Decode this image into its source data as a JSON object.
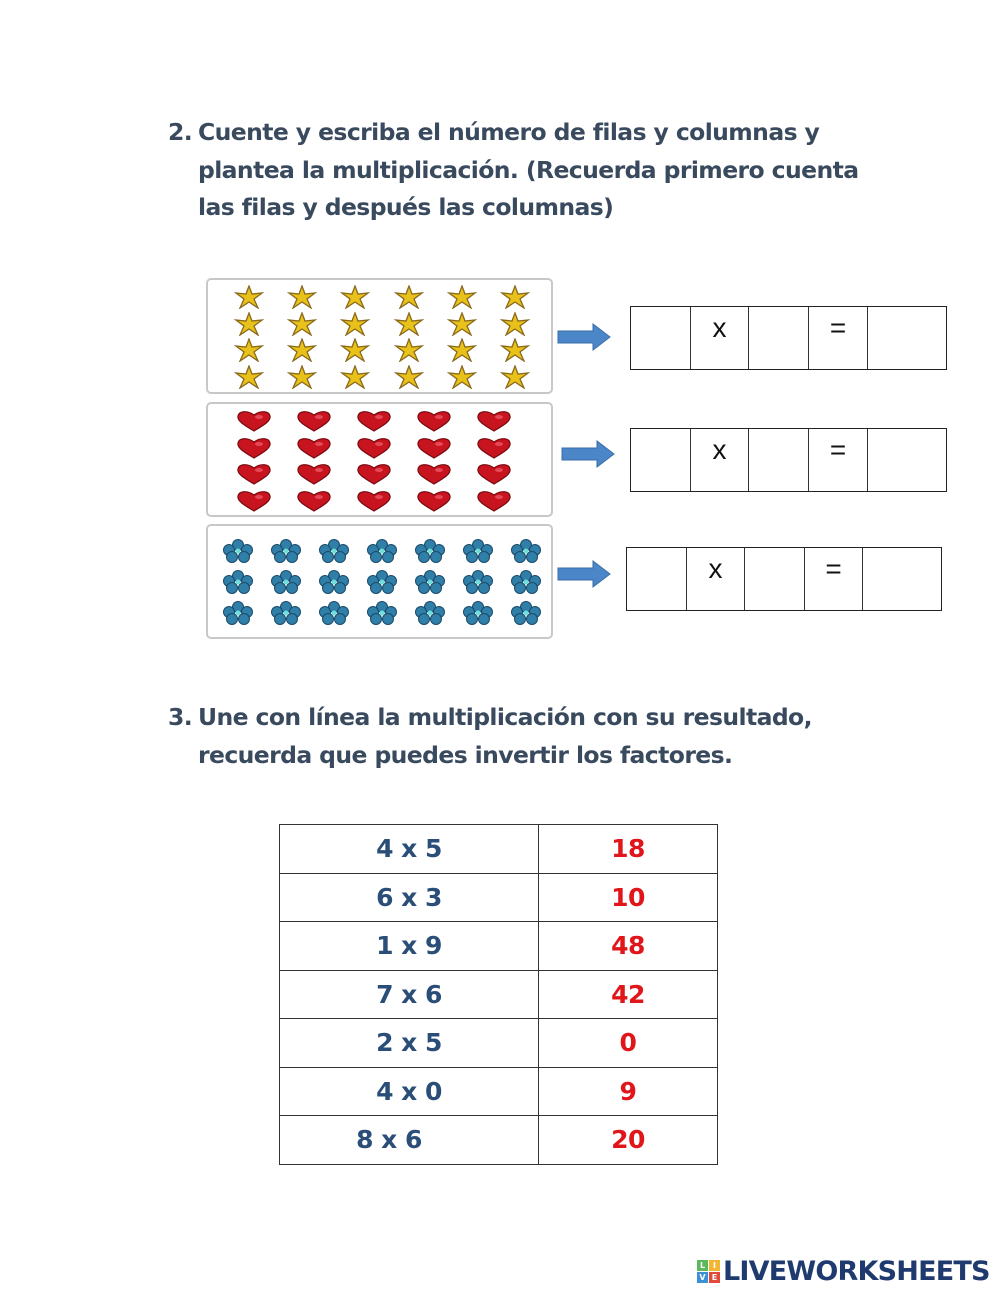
{
  "question2": {
    "number": "2.",
    "lines": [
      "Cuente y escriba el número de filas y columnas y",
      "plantea la multiplicación. (Recuerda primero cuenta",
      "las filas y después las columnas)"
    ]
  },
  "arrays": [
    {
      "kind": "star",
      "icon": "star-icon",
      "rows": 4,
      "cols": 6,
      "color": "#e8c11a"
    },
    {
      "kind": "heart",
      "icon": "heart-icon",
      "rows": 4,
      "cols": 5,
      "color": "#c8141e"
    },
    {
      "kind": "flower",
      "icon": "flower-icon",
      "rows": 3,
      "cols": 7,
      "color": "#2f7fa8"
    }
  ],
  "equation_boxes": [
    {
      "times_symbol": "x",
      "equals_symbol": "=",
      "factor1": "",
      "factor2": "",
      "product": ""
    },
    {
      "times_symbol": "x",
      "equals_symbol": "=",
      "factor1": "",
      "factor2": "",
      "product": ""
    },
    {
      "times_symbol": "x",
      "equals_symbol": "=",
      "factor1": "",
      "factor2": "",
      "product": ""
    }
  ],
  "question3": {
    "number": "3.",
    "lines": [
      "Une con línea la multiplicación con su resultado,",
      "recuerda que puedes invertir los factores."
    ]
  },
  "match_table": {
    "rows": [
      {
        "operation": "4 x 5",
        "result": "18"
      },
      {
        "operation": "6 x 3",
        "result": "10"
      },
      {
        "operation": "1 x 9",
        "result": "48"
      },
      {
        "operation": "7 x 6",
        "result": "42"
      },
      {
        "operation": "2 x 5",
        "result": "0"
      },
      {
        "operation": "4 x 0",
        "result": "9"
      },
      {
        "operation": "8 x 6",
        "result": "20"
      }
    ]
  },
  "colors": {
    "heading": "#3a4a5e",
    "operation": "#2a4e78",
    "result": "#e0161b",
    "arrow": "#4a86c8",
    "logo_text": "#1e3a6e"
  },
  "footer": {
    "logo_letters": [
      "L",
      "I",
      "V",
      "E"
    ],
    "logo_colors": [
      "#5cb85c",
      "#f2b632",
      "#3d8fd6",
      "#e24a3b"
    ],
    "brand": "LIVEWORKSHEETS"
  }
}
